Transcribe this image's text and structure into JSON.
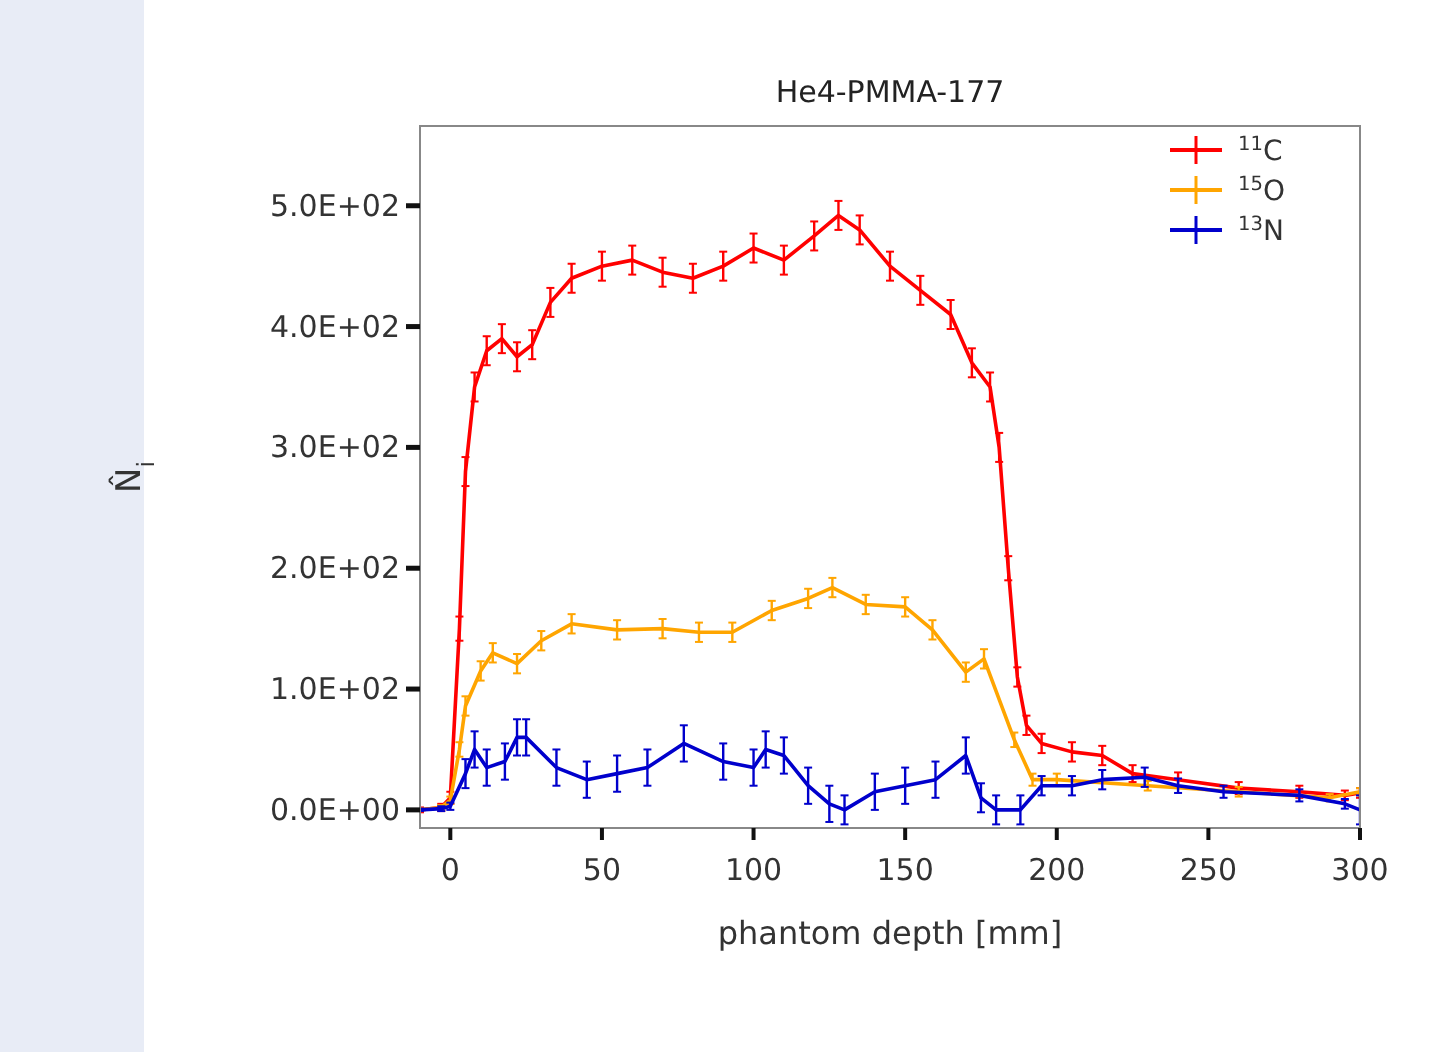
{
  "chart_data": {
    "type": "line",
    "title": "He4-PMMA-177",
    "xlabel": "phantom depth [mm]",
    "ylabel": "N̂$_{i}$",
    "xlim": [
      -10,
      300
    ],
    "ylim": [
      -15,
      566
    ],
    "xticks": [
      0,
      50,
      100,
      150,
      200,
      250,
      300
    ],
    "yticks": [
      {
        "value": 0,
        "label": "0.0E+00"
      },
      {
        "value": 100,
        "label": "1.0E+02"
      },
      {
        "value": 200,
        "label": "2.0E+02"
      },
      {
        "value": 300,
        "label": "3.0E+02"
      },
      {
        "value": 400,
        "label": "4.0E+02"
      },
      {
        "value": 500,
        "label": "5.0E+02"
      }
    ],
    "legend": "top right",
    "grid": false,
    "series": [
      {
        "name": "$^{11}$C",
        "color": "#ff0000",
        "x": [
          -10,
          -3,
          0,
          3,
          5,
          8,
          12,
          17,
          22,
          27,
          33,
          40,
          50,
          60,
          70,
          80,
          90,
          100,
          110,
          120,
          128,
          135,
          145,
          155,
          165,
          172,
          178,
          181,
          184,
          187,
          190,
          195,
          205,
          215,
          225,
          240,
          260,
          280,
          295,
          300
        ],
        "values": [
          0,
          2,
          10,
          150,
          280,
          350,
          380,
          390,
          375,
          385,
          420,
          440,
          450,
          455,
          445,
          440,
          450,
          465,
          455,
          475,
          492,
          480,
          450,
          430,
          410,
          370,
          350,
          300,
          200,
          110,
          70,
          55,
          48,
          45,
          30,
          25,
          18,
          15,
          12,
          14
        ],
        "errors": [
          2,
          3,
          5,
          10,
          12,
          12,
          12,
          12,
          12,
          12,
          12,
          12,
          12,
          12,
          12,
          12,
          12,
          12,
          12,
          12,
          12,
          12,
          12,
          12,
          12,
          12,
          12,
          12,
          10,
          8,
          8,
          8,
          8,
          8,
          7,
          6,
          5,
          5,
          4,
          4
        ]
      },
      {
        "name": "$^{15}$O",
        "color": "#ffa500",
        "x": [
          -10,
          -3,
          0,
          3,
          5,
          10,
          14,
          22,
          30,
          40,
          55,
          70,
          82,
          93,
          106,
          118,
          126,
          137,
          150,
          159,
          170,
          176,
          186,
          192,
          200,
          230,
          260,
          290,
          300
        ],
        "values": [
          0,
          2,
          8,
          50,
          86,
          115,
          130,
          121,
          140,
          154,
          149,
          150,
          147,
          147,
          165,
          175,
          184,
          170,
          168,
          149,
          114,
          125,
          58,
          25,
          25,
          20,
          15,
          10,
          15
        ],
        "errors": [
          1,
          2,
          3,
          6,
          8,
          8,
          8,
          8,
          8,
          8,
          8,
          8,
          8,
          8,
          8,
          8,
          8,
          8,
          8,
          8,
          8,
          8,
          6,
          5,
          5,
          4,
          4,
          3,
          3
        ]
      },
      {
        "name": "$^{13}$N",
        "color": "#0000cc",
        "x": [
          -10,
          -3,
          0,
          5,
          8,
          12,
          18,
          22,
          25,
          35,
          45,
          55,
          65,
          77,
          90,
          100,
          104,
          110,
          118,
          125,
          130,
          140,
          150,
          160,
          170,
          175,
          180,
          188,
          195,
          205,
          215,
          229,
          240,
          255,
          280,
          295,
          300
        ],
        "values": [
          0,
          1,
          3,
          30,
          50,
          35,
          40,
          60,
          60,
          35,
          25,
          30,
          35,
          55,
          40,
          35,
          50,
          45,
          20,
          5,
          0,
          15,
          20,
          25,
          45,
          10,
          0,
          0,
          20,
          20,
          25,
          27,
          20,
          15,
          12,
          5,
          0
        ],
        "errors": [
          1,
          2,
          3,
          12,
          15,
          15,
          15,
          15,
          15,
          15,
          15,
          15,
          15,
          15,
          15,
          15,
          15,
          15,
          15,
          15,
          12,
          15,
          15,
          15,
          15,
          12,
          12,
          12,
          8,
          8,
          8,
          8,
          6,
          5,
          5,
          4,
          12
        ]
      }
    ]
  }
}
